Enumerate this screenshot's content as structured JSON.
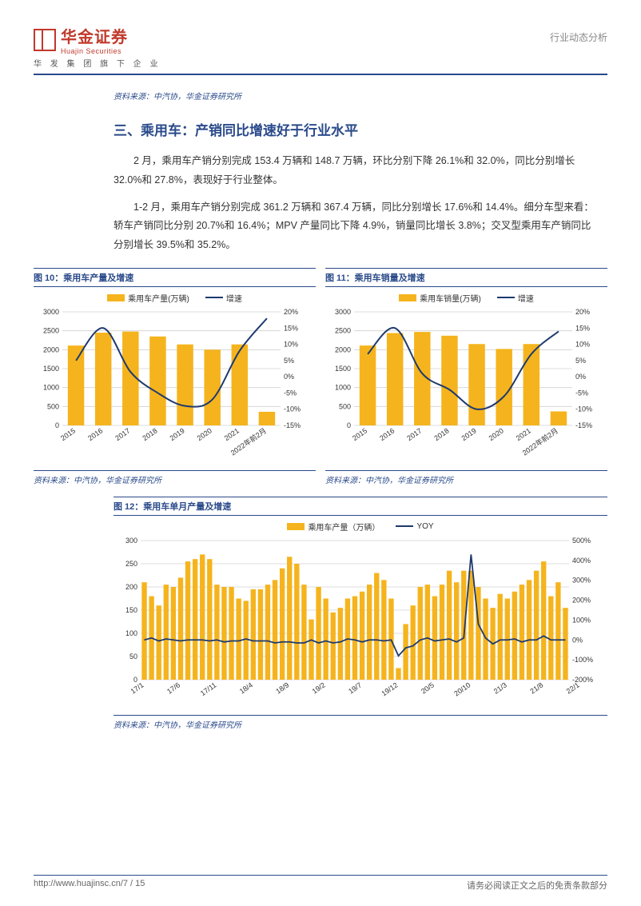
{
  "header": {
    "logo_cn": "华金证券",
    "logo_en": "Huajin Securities",
    "logo_sub": "华 发 集 团 旗 下 企 业",
    "right": "行业动态分析"
  },
  "source_top": "资料来源：中汽协，华金证券研究所",
  "section_title": "三、乘用车：产销同比增速好于行业水平",
  "para1": "2 月，乘用车产销分别完成 153.4 万辆和 148.7 万辆，环比分别下降 26.1%和 32.0%，同比分别增长 32.0%和 27.8%，表现好于行业整体。",
  "para2": "1-2 月，乘用车产销分别完成 361.2 万辆和 367.4 万辆，同比分别增长 17.6%和 14.4%。细分车型来看：轿车产销同比分别 20.7%和 16.4%；MPV 产量同比下降 4.9%，销量同比增长 3.8%；交叉型乘用车产销同比分别增长 39.5%和 35.2%。",
  "chart10": {
    "title": "图 10：乘用车产量及增速",
    "type": "bar+line",
    "legend_bar": "乘用车产量(万辆)",
    "legend_line": "增速",
    "categories": [
      "2015",
      "2016",
      "2017",
      "2018",
      "2019",
      "2020",
      "2021",
      "2022年前2月"
    ],
    "bar_values": [
      2110,
      2450,
      2480,
      2350,
      2140,
      2000,
      2140,
      360
    ],
    "line_values": [
      5,
      15,
      1.5,
      -5,
      -9,
      -7,
      8,
      18
    ],
    "ylim_left": [
      0,
      3000
    ],
    "ytick_left_step": 500,
    "ylim_right": [
      -15,
      20
    ],
    "ytick_right_step": 5,
    "bar_color": "#f5b41d",
    "line_color": "#1e3a6e",
    "grid_color": "#d0d0d0",
    "background_color": "#ffffff",
    "source": "资料来源：中汽协，华金证券研究所"
  },
  "chart11": {
    "title": "图 11：乘用车销量及增速",
    "type": "bar+line",
    "legend_bar": "乘用车销量(万辆)",
    "legend_line": "增速",
    "categories": [
      "2015",
      "2016",
      "2017",
      "2018",
      "2019",
      "2020",
      "2021",
      "2022年前2月"
    ],
    "bar_values": [
      2110,
      2440,
      2470,
      2370,
      2150,
      2020,
      2150,
      370
    ],
    "line_values": [
      7,
      15,
      1,
      -4,
      -10,
      -6,
      7,
      14
    ],
    "ylim_left": [
      0,
      3000
    ],
    "ytick_left_step": 500,
    "ylim_right": [
      -15,
      20
    ],
    "ytick_right_step": 5,
    "bar_color": "#f5b41d",
    "line_color": "#1e3a6e",
    "grid_color": "#d0d0d0",
    "background_color": "#ffffff",
    "source": "资料来源：中汽协，华金证券研究所"
  },
  "chart12": {
    "title": "图 12：乘用车单月产量及增速",
    "type": "bar+line",
    "legend_bar": "乘用车产量（万辆）",
    "legend_line": "YOY",
    "x_labels": [
      "17/1",
      "17/6",
      "17/11",
      "18/4",
      "18/9",
      "19/2",
      "19/7",
      "19/12",
      "20/5",
      "20/10",
      "21/3",
      "21/8",
      "22/1"
    ],
    "bar_values": [
      210,
      180,
      160,
      205,
      200,
      220,
      255,
      260,
      270,
      260,
      205,
      200,
      200,
      175,
      170,
      195,
      195,
      205,
      215,
      240,
      265,
      250,
      205,
      130,
      200,
      175,
      145,
      155,
      175,
      180,
      190,
      205,
      230,
      215,
      175,
      25,
      120,
      160,
      200,
      205,
      180,
      205,
      235,
      210,
      235,
      235,
      200,
      175,
      155,
      185,
      175,
      190,
      205,
      215,
      235,
      255,
      180,
      210,
      155
    ],
    "line_values": [
      0,
      10,
      -5,
      5,
      0,
      -5,
      0,
      0,
      0,
      -5,
      0,
      -10,
      -5,
      -5,
      5,
      -5,
      -5,
      -5,
      -15,
      -10,
      -10,
      -15,
      -15,
      0,
      -15,
      -5,
      -15,
      -10,
      5,
      0,
      -10,
      0,
      0,
      -5,
      0,
      -80,
      -40,
      -30,
      0,
      10,
      -5,
      0,
      5,
      -10,
      10,
      430,
      80,
      10,
      -20,
      0,
      0,
      5,
      -10,
      0,
      0,
      20,
      0,
      0,
      0
    ],
    "ylim_left": [
      0,
      300
    ],
    "ytick_left_step": 50,
    "ylim_right": [
      -200,
      500
    ],
    "ytick_right_step": 100,
    "bar_color": "#f5b41d",
    "line_color": "#1e3a6e",
    "grid_color": "#d0d0d0",
    "background_color": "#ffffff",
    "source": "资料来源：中汽协，华金证券研究所"
  },
  "footer": {
    "left": "http://www.huajinsc.cn/7 / 15",
    "right": "请务必阅读正文之后的免责条款部分"
  }
}
